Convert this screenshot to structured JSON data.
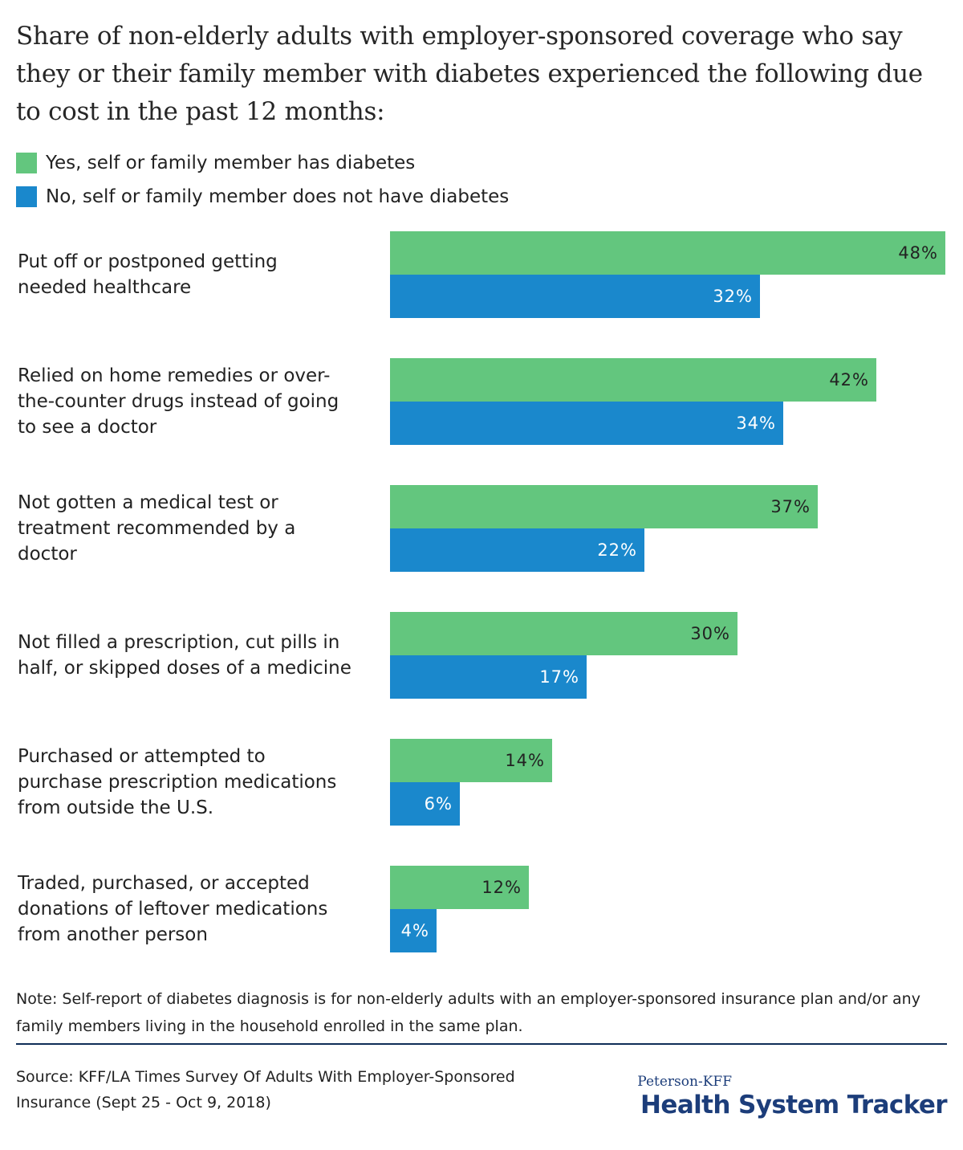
{
  "title": "Share of non-elderly adults with employer-sponsored coverage who say they or their family member with diabetes experienced the following due to cost in the past 12 months:",
  "colors": {
    "yes": "#63c67e",
    "no": "#1a88cc",
    "brand": "#1c3d7a"
  },
  "legend": [
    {
      "label": "Yes, self or family member has diabetes",
      "color": "#63c67e"
    },
    {
      "label": "No, self or family member does not have diabetes",
      "color": "#1a88cc"
    }
  ],
  "chart_data": {
    "type": "bar",
    "orientation": "horizontal",
    "categories": [
      "Put off or postponed getting needed healthcare",
      "Relied on home remedies or over-the-counter drugs instead of going to see a doctor",
      "Not gotten a medical test or treatment recommended by a doctor",
      "Not filled a prescription, cut pills in half, or skipped doses of a medicine",
      "Purchased or attempted to purchase prescription medications from outside the U.S.",
      "Traded, purchased, or accepted donations of leftover medications from another person"
    ],
    "series": [
      {
        "name": "Yes, self or family member has diabetes",
        "values": [
          48,
          42,
          37,
          30,
          14,
          12
        ],
        "labels": [
          "48%",
          "42%",
          "37%",
          "30%",
          "14%",
          "12%"
        ]
      },
      {
        "name": "No, self or family member does not have diabetes",
        "values": [
          32,
          34,
          22,
          17,
          6,
          4
        ],
        "labels": [
          "32%",
          "34%",
          "22%",
          "17%",
          "6%",
          "4%"
        ]
      }
    ],
    "xlim": [
      0,
      48
    ],
    "unit": "%"
  },
  "category_lines": [
    [
      "Put off or postponed getting",
      "needed healthcare"
    ],
    [
      "Relied on home remedies or over-",
      "the-counter drugs instead of going",
      "to see a doctor"
    ],
    [
      "Not gotten a medical test or",
      "treatment recommended by a",
      "doctor"
    ],
    [
      "Not filled a prescription, cut pills in",
      "half, or skipped doses of a medicine"
    ],
    [
      "Purchased or attempted to",
      "purchase prescription medications",
      "from outside the U.S."
    ],
    [
      "Traded, purchased, or accepted",
      "donations of leftover medications",
      "from another person"
    ]
  ],
  "note": "Note: Self-report of diabetes diagnosis is for non-elderly adults with an employer-sponsored insurance plan and/or any family members living in the household enrolled in the same plan.",
  "source": "Source: KFF/LA Times Survey Of Adults With Employer-Sponsored Insurance (Sept 25 - Oct 9, 2018)",
  "brand": {
    "top": "Peterson-KFF",
    "main": "Health System Tracker"
  }
}
